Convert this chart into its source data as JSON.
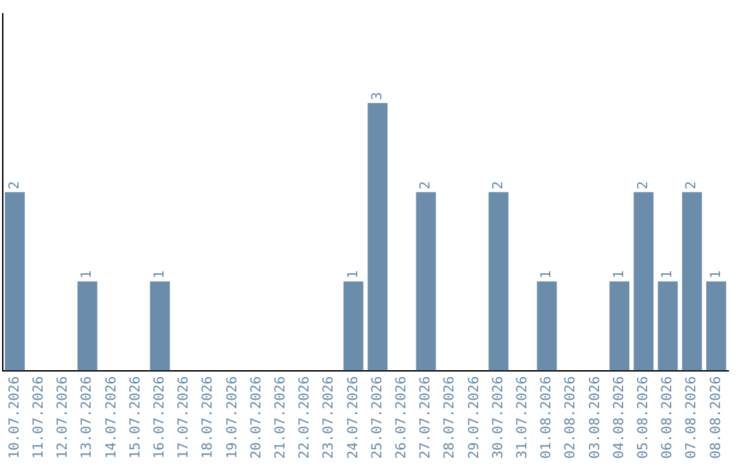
{
  "chart_data": {
    "type": "bar",
    "categories": [
      "10.07.2026",
      "11.07.2026",
      "12.07.2026",
      "13.07.2026",
      "14.07.2026",
      "15.07.2026",
      "16.07.2026",
      "17.07.2026",
      "18.07.2026",
      "19.07.2026",
      "20.07.2026",
      "21.07.2026",
      "22.07.2026",
      "23.07.2026",
      "24.07.2026",
      "25.07.2026",
      "26.07.2026",
      "27.07.2026",
      "28.07.2026",
      "29.07.2026",
      "30.07.2026",
      "31.07.2026",
      "01.08.2026",
      "02.08.2026",
      "03.08.2026",
      "04.08.2026",
      "05.08.2026",
      "06.08.2026",
      "07.08.2026",
      "08.08.2026"
    ],
    "values": [
      2,
      0,
      0,
      1,
      0,
      0,
      1,
      0,
      0,
      0,
      0,
      0,
      0,
      0,
      1,
      3,
      0,
      2,
      0,
      0,
      2,
      0,
      1,
      0,
      0,
      1,
      2,
      1,
      2,
      1
    ],
    "value_labels": [
      "2",
      null,
      null,
      "1",
      null,
      null,
      "1",
      null,
      null,
      null,
      null,
      null,
      null,
      null,
      "1",
      "3",
      null,
      "2",
      null,
      null,
      "2",
      null,
      "1",
      null,
      null,
      "1",
      "2",
      "1",
      "2",
      "1"
    ],
    "color": "#6b8cab",
    "tick_labels": "x",
    "grid": false,
    "legend": false
  }
}
